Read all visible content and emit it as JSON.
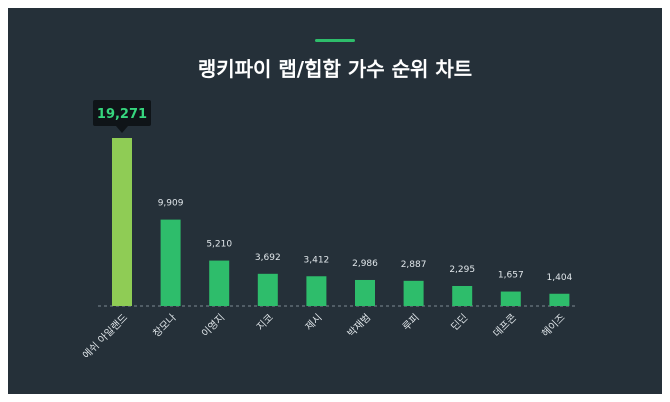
{
  "colors": {
    "background": "#253039",
    "bar_green": "#2ebd6b",
    "bar_highlight": "#8fcc55",
    "accent_line": "#2ebd6b",
    "title_text": "#ffffff",
    "label_text": "#e0e6ea",
    "tooltip_bg": "#0f1418",
    "tooltip_text": "#36d67e",
    "baseline": "#7d8a94"
  },
  "chart_data": {
    "type": "bar",
    "title": "랭키파이 랩/힙합 가수 순위 차트",
    "categories": [
      "에쉬 아일랜드",
      "창모나",
      "이영지",
      "지코",
      "제시",
      "박재범",
      "루피",
      "딘딘",
      "데프콘",
      "헤이즈"
    ],
    "values": [
      19271,
      9909,
      5210,
      3692,
      3412,
      2986,
      2887,
      2295,
      1657,
      1404
    ],
    "value_labels": [
      "19,271",
      "9,909",
      "5,210",
      "3,692",
      "3,412",
      "2,986",
      "2,887",
      "2,295",
      "1,657",
      "1,404"
    ],
    "highlight_index": 0,
    "ylim": [
      0,
      19271
    ],
    "xlabel": "",
    "ylabel": "",
    "grid": false
  }
}
